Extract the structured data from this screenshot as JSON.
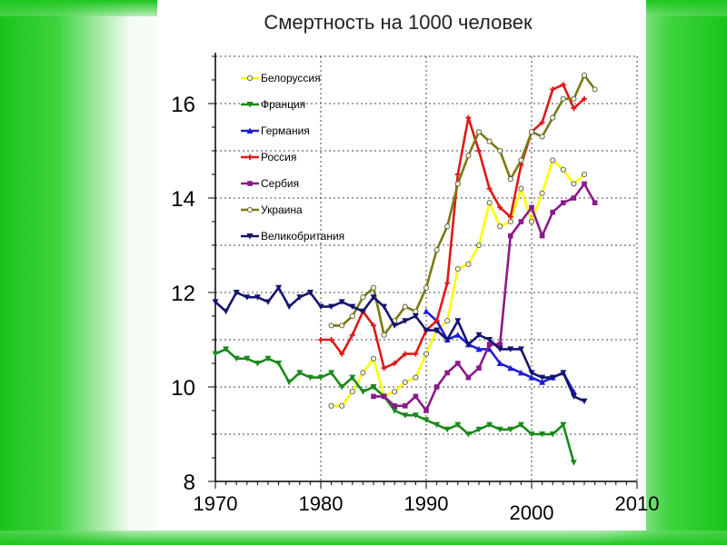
{
  "chart_data": {
    "type": "line",
    "title": "Смертность на 1000 человек",
    "xlabel": "",
    "ylabel": "",
    "xlim": [
      1970,
      2010
    ],
    "ylim": [
      8,
      17
    ],
    "x_ticks": [
      1970,
      1980,
      1990,
      2000,
      2010
    ],
    "y_ticks": [
      8,
      10,
      12,
      14,
      16
    ],
    "grid": true,
    "legend_position": "top-left",
    "series": [
      {
        "name": "Белоруссия",
        "color": "#ffff00",
        "marker": "circle",
        "points": [
          [
            1981,
            9.6
          ],
          [
            1982,
            9.6
          ],
          [
            1983,
            9.9
          ],
          [
            1984,
            10.3
          ],
          [
            1985,
            10.6
          ],
          [
            1986,
            9.8
          ],
          [
            1987,
            9.9
          ],
          [
            1988,
            10.1
          ],
          [
            1989,
            10.2
          ],
          [
            1990,
            10.7
          ],
          [
            1991,
            11.2
          ],
          [
            1992,
            11.4
          ],
          [
            1993,
            12.5
          ],
          [
            1994,
            12.6
          ],
          [
            1995,
            13.0
          ],
          [
            1996,
            13.9
          ],
          [
            1997,
            13.4
          ],
          [
            1998,
            13.5
          ],
          [
            1999,
            14.2
          ],
          [
            2000,
            13.5
          ],
          [
            2001,
            14.1
          ],
          [
            2002,
            14.8
          ],
          [
            2003,
            14.6
          ],
          [
            2004,
            14.3
          ],
          [
            2005,
            14.5
          ]
        ]
      },
      {
        "name": "Франция",
        "color": "#1a8a1a",
        "marker": "triangle-down",
        "points": [
          [
            1970,
            10.7
          ],
          [
            1971,
            10.8
          ],
          [
            1972,
            10.6
          ],
          [
            1973,
            10.6
          ],
          [
            1974,
            10.5
          ],
          [
            1975,
            10.6
          ],
          [
            1976,
            10.5
          ],
          [
            1977,
            10.1
          ],
          [
            1978,
            10.3
          ],
          [
            1979,
            10.2
          ],
          [
            1980,
            10.2
          ],
          [
            1981,
            10.3
          ],
          [
            1982,
            10.0
          ],
          [
            1983,
            10.2
          ],
          [
            1984,
            9.9
          ],
          [
            1985,
            10.0
          ],
          [
            1986,
            9.8
          ],
          [
            1987,
            9.5
          ],
          [
            1988,
            9.4
          ],
          [
            1989,
            9.4
          ],
          [
            1990,
            9.3
          ],
          [
            1991,
            9.2
          ],
          [
            1992,
            9.1
          ],
          [
            1993,
            9.2
          ],
          [
            1994,
            9.0
          ],
          [
            1995,
            9.1
          ],
          [
            1996,
            9.2
          ],
          [
            1997,
            9.1
          ],
          [
            1998,
            9.1
          ],
          [
            1999,
            9.2
          ],
          [
            2000,
            9.0
          ],
          [
            2001,
            9.0
          ],
          [
            2002,
            9.0
          ],
          [
            2003,
            9.2
          ],
          [
            2004,
            8.4
          ]
        ]
      },
      {
        "name": "Германия",
        "color": "#1c1cd8",
        "marker": "triangle-up",
        "points": [
          [
            1990,
            11.6
          ],
          [
            1991,
            11.4
          ],
          [
            1992,
            11.0
          ],
          [
            1993,
            11.1
          ],
          [
            1994,
            10.9
          ],
          [
            1995,
            10.8
          ],
          [
            1996,
            10.8
          ],
          [
            1997,
            10.5
          ],
          [
            1998,
            10.4
          ],
          [
            1999,
            10.3
          ],
          [
            2000,
            10.2
          ],
          [
            2001,
            10.1
          ],
          [
            2002,
            10.2
          ],
          [
            2003,
            10.3
          ],
          [
            2004,
            9.9
          ]
        ]
      },
      {
        "name": "Россия",
        "color": "#e01818",
        "marker": "plus",
        "points": [
          [
            1980,
            11.0
          ],
          [
            1981,
            11.0
          ],
          [
            1982,
            10.7
          ],
          [
            1983,
            11.1
          ],
          [
            1984,
            11.6
          ],
          [
            1985,
            11.3
          ],
          [
            1986,
            10.4
          ],
          [
            1987,
            10.5
          ],
          [
            1988,
            10.7
          ],
          [
            1989,
            10.7
          ],
          [
            1990,
            11.2
          ],
          [
            1991,
            11.4
          ],
          [
            1992,
            12.2
          ],
          [
            1993,
            14.5
          ],
          [
            1994,
            15.7
          ],
          [
            1995,
            15.0
          ],
          [
            1996,
            14.2
          ],
          [
            1997,
            13.8
          ],
          [
            1998,
            13.6
          ],
          [
            1999,
            14.7
          ],
          [
            2000,
            15.4
          ],
          [
            2001,
            15.6
          ],
          [
            2002,
            16.3
          ],
          [
            2003,
            16.4
          ],
          [
            2004,
            15.9
          ],
          [
            2005,
            16.1
          ]
        ]
      },
      {
        "name": "Сербия",
        "color": "#8a1a8a",
        "marker": "square",
        "points": [
          [
            1985,
            9.8
          ],
          [
            1986,
            9.8
          ],
          [
            1987,
            9.6
          ],
          [
            1988,
            9.6
          ],
          [
            1989,
            9.8
          ],
          [
            1990,
            9.5
          ],
          [
            1991,
            10.0
          ],
          [
            1992,
            10.3
          ],
          [
            1993,
            10.5
          ],
          [
            1994,
            10.2
          ],
          [
            1995,
            10.4
          ],
          [
            1996,
            10.9
          ],
          [
            1997,
            10.9
          ],
          [
            1998,
            13.2
          ],
          [
            1999,
            13.5
          ],
          [
            2000,
            13.8
          ],
          [
            2001,
            13.2
          ],
          [
            2002,
            13.7
          ],
          [
            2003,
            13.9
          ],
          [
            2004,
            14.0
          ],
          [
            2005,
            14.3
          ],
          [
            2006,
            13.9
          ]
        ]
      },
      {
        "name": "Украина",
        "color": "#7a7a10",
        "marker": "circle",
        "points": [
          [
            1981,
            11.3
          ],
          [
            1982,
            11.3
          ],
          [
            1983,
            11.5
          ],
          [
            1984,
            11.9
          ],
          [
            1985,
            12.1
          ],
          [
            1986,
            11.1
          ],
          [
            1987,
            11.4
          ],
          [
            1988,
            11.7
          ],
          [
            1989,
            11.6
          ],
          [
            1990,
            12.1
          ],
          [
            1991,
            12.9
          ],
          [
            1992,
            13.4
          ],
          [
            1993,
            14.3
          ],
          [
            1994,
            14.9
          ],
          [
            1995,
            15.4
          ],
          [
            1996,
            15.2
          ],
          [
            1997,
            15.0
          ],
          [
            1998,
            14.4
          ],
          [
            1999,
            14.8
          ],
          [
            2000,
            15.4
          ],
          [
            2001,
            15.3
          ],
          [
            2002,
            15.7
          ],
          [
            2003,
            16.1
          ],
          [
            2004,
            16.1
          ],
          [
            2005,
            16.6
          ],
          [
            2006,
            16.3
          ]
        ]
      },
      {
        "name": "Великобритания",
        "color": "#14146e",
        "marker": "triangle-down",
        "points": [
          [
            1970,
            11.8
          ],
          [
            1971,
            11.6
          ],
          [
            1972,
            12.0
          ],
          [
            1973,
            11.9
          ],
          [
            1974,
            11.9
          ],
          [
            1975,
            11.8
          ],
          [
            1976,
            12.1
          ],
          [
            1977,
            11.7
          ],
          [
            1978,
            11.9
          ],
          [
            1979,
            12.0
          ],
          [
            1980,
            11.7
          ],
          [
            1981,
            11.7
          ],
          [
            1982,
            11.8
          ],
          [
            1983,
            11.7
          ],
          [
            1984,
            11.6
          ],
          [
            1985,
            11.9
          ],
          [
            1986,
            11.7
          ],
          [
            1987,
            11.3
          ],
          [
            1988,
            11.4
          ],
          [
            1989,
            11.5
          ],
          [
            1990,
            11.2
          ],
          [
            1991,
            11.2
          ],
          [
            1992,
            11.0
          ],
          [
            1993,
            11.4
          ],
          [
            1994,
            10.9
          ],
          [
            1995,
            11.1
          ],
          [
            1996,
            11.0
          ],
          [
            1997,
            10.8
          ],
          [
            1998,
            10.8
          ],
          [
            1999,
            10.8
          ],
          [
            2000,
            10.3
          ],
          [
            2001,
            10.2
          ],
          [
            2002,
            10.2
          ],
          [
            2003,
            10.3
          ],
          [
            2004,
            9.8
          ],
          [
            2005,
            9.7
          ]
        ]
      }
    ]
  }
}
